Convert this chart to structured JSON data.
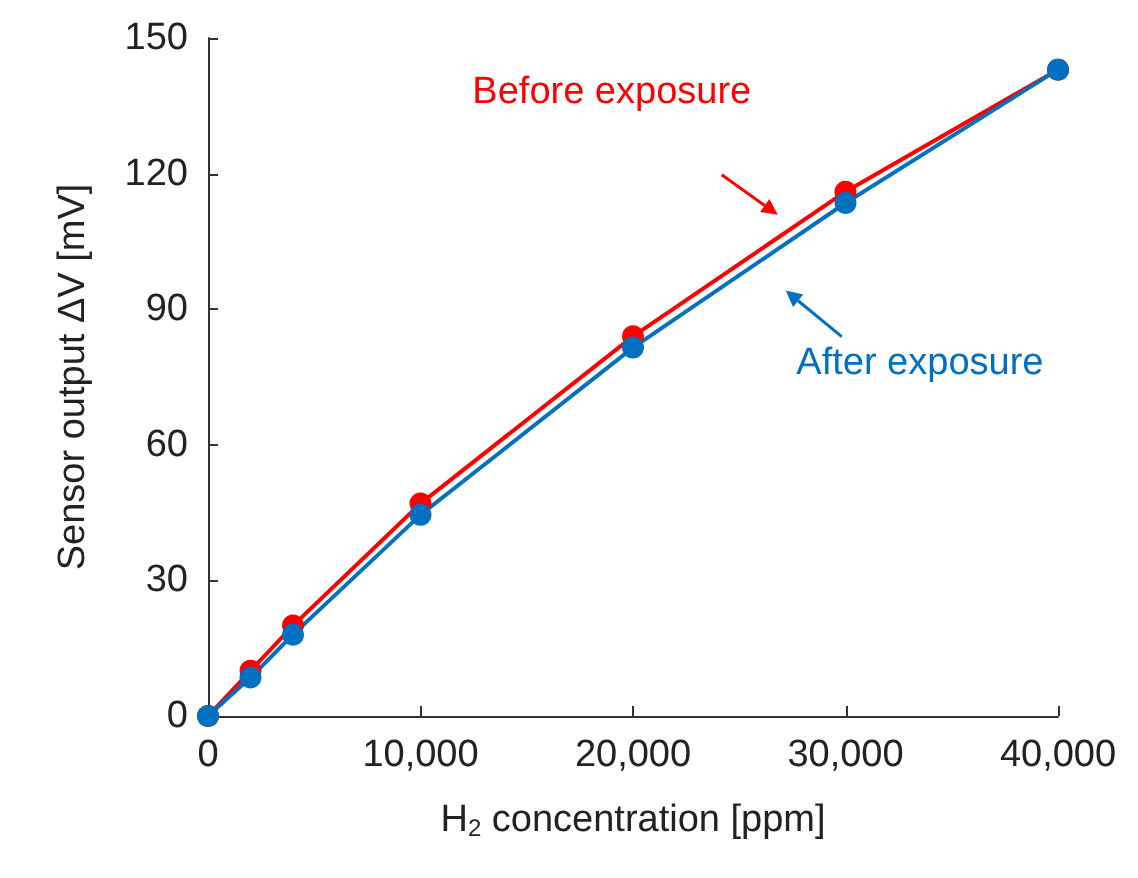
{
  "chart_data": {
    "type": "line",
    "xlabel": "H$_{2}$ concentration [ppm]",
    "ylabel": "Sensor output ΔV [mV]",
    "xlim": [
      0,
      40000
    ],
    "xticks": [
      {
        "value": 0,
        "label": "0"
      },
      {
        "value": 10000,
        "label": "10,000"
      },
      {
        "value": 20000,
        "label": "20,000"
      },
      {
        "value": 30000,
        "label": "30,000"
      },
      {
        "value": 40000,
        "label": "40,000"
      }
    ],
    "ylim": [
      0,
      150
    ],
    "yticks": [
      0,
      30,
      60,
      90,
      120,
      150
    ],
    "grid": false,
    "marker": "circle",
    "line_style": "solid",
    "series": [
      {
        "name": "Before exposure",
        "color": "#ff0000",
        "x": [
          0,
          2000,
          4000,
          10000,
          20000,
          30000,
          40000
        ],
        "values": [
          0,
          10,
          20,
          47,
          84,
          116,
          143
        ]
      },
      {
        "name": "After exposure",
        "color": "#0070c0",
        "x": [
          0,
          2000,
          4000,
          10000,
          20000,
          30000,
          40000
        ],
        "values": [
          0,
          8.5,
          18,
          44.5,
          81.5,
          113.5,
          143
        ]
      }
    ]
  }
}
